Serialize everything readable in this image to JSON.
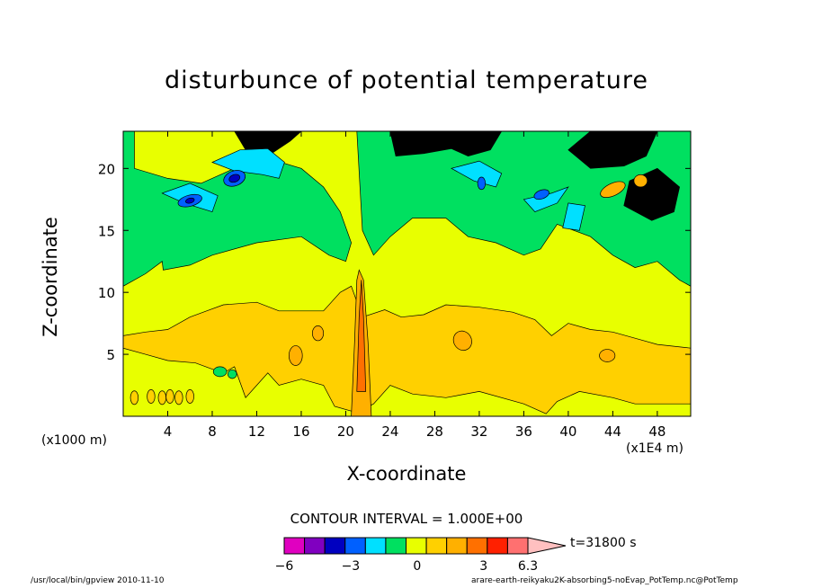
{
  "chart_data": {
    "type": "heatmap",
    "title": "disturbunce of potential temperature",
    "xlabel": "X-coordinate",
    "ylabel": "Z-coordinate",
    "x_unit_left": "(x1000 m)",
    "x_unit_right": "(x1E4 m)",
    "xlim": [
      0,
      51
    ],
    "ylim": [
      0,
      23
    ],
    "x_ticks": [
      4,
      8,
      12,
      16,
      20,
      24,
      28,
      32,
      36,
      40,
      44,
      48
    ],
    "y_ticks": [
      5,
      10,
      15,
      20
    ],
    "contour_interval_label": "CONTOUR INTERVAL = 1.000E+00",
    "time_label": "t=31800 s",
    "colorbar": {
      "levels": [
        -6,
        -5,
        -4,
        -3,
        -2,
        -1,
        0,
        1,
        2,
        3,
        4,
        5,
        6
      ],
      "tick_labels": [
        "−6",
        "−3",
        "0",
        "3",
        "6.3"
      ],
      "tick_values": [
        -6,
        -3,
        0,
        3,
        6.3
      ],
      "colors": [
        "#e000c0",
        "#8000c0",
        "#0000c0",
        "#0060ff",
        "#00e0ff",
        "#00e060",
        "#e8ff00",
        "#ffd000",
        "#ffb000",
        "#ff7000",
        "#ff2000",
        "#ff7070",
        "#ffc0c0"
      ]
    },
    "field": {
      "background_value": 0,
      "background_color": "#e8ff00",
      "regions": [
        {
          "level": -1,
          "color": "#00e060"
        },
        {
          "level": -2,
          "color": "#00e0ff"
        },
        {
          "level": -3,
          "color": "#0060ff"
        },
        {
          "level": -4,
          "color": "#0000c0"
        },
        {
          "level": 1,
          "color": "#ffd000"
        },
        {
          "level": 2,
          "color": "#ffb000"
        },
        {
          "level": 3,
          "color": "#ff7000"
        }
      ]
    }
  },
  "footer": {
    "left": "/usr/local/bin/gpview  2010-11-10",
    "right": "arare-earth-reikyaku2K-absorbing5-noEvap_PotTemp.nc@PotTemp"
  }
}
